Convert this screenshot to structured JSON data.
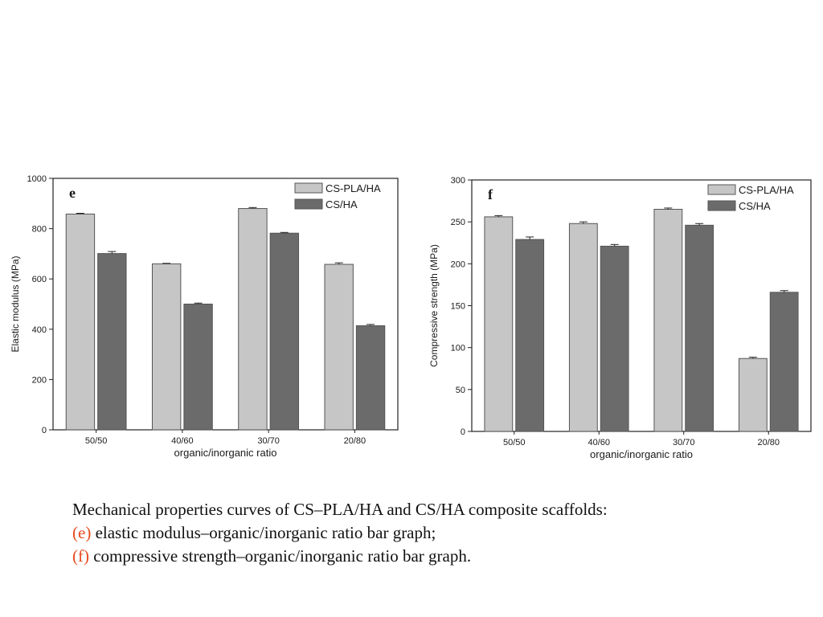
{
  "caption": {
    "line1": "Mechanical properties curves of CS–PLA/HA and CS/HA composite scaffolds:",
    "line2_tag": "(e)",
    "line2_text": " elastic modulus–organic/inorganic ratio bar graph;",
    "line3_tag": "(f)",
    "line3_text": " compressive strength–organic/inorganic ratio bar graph.",
    "tag_color": "#e8491d"
  },
  "chart_data": [
    {
      "type": "bar",
      "panel": "e",
      "categories": [
        "50/50",
        "40/60",
        "30/70",
        "20/80"
      ],
      "xlabel": "organic/inorganic ratio",
      "ylabel": "Elastic modulus (MPa)",
      "ylim": [
        0,
        1000
      ],
      "yticks": [
        0,
        200,
        400,
        600,
        800,
        1000
      ],
      "legend_position": "top-right",
      "series": [
        {
          "name": "CS-PLA/HA",
          "values": [
            858,
            660,
            880,
            658
          ],
          "errors": [
            3,
            2,
            4,
            6
          ],
          "color": "#c6c6c6"
        },
        {
          "name": "CS/HA",
          "values": [
            701,
            500,
            782,
            414
          ],
          "errors": [
            8,
            4,
            3,
            5
          ],
          "color": "#6b6b6b"
        }
      ]
    },
    {
      "type": "bar",
      "panel": "f",
      "categories": [
        "50/50",
        "40/60",
        "30/70",
        "20/80"
      ],
      "xlabel": "organic/inorganic ratio",
      "ylabel": "Compressive strength (MPa)",
      "ylim": [
        0,
        300
      ],
      "yticks": [
        0,
        50,
        100,
        150,
        200,
        250,
        300
      ],
      "legend_position": "top-right",
      "series": [
        {
          "name": "CS-PLA/HA",
          "values": [
            256,
            248,
            265,
            87
          ],
          "errors": [
            1.5,
            2,
            1.5,
            1.5
          ],
          "color": "#c6c6c6"
        },
        {
          "name": "CS/HA",
          "values": [
            229,
            221,
            246,
            166
          ],
          "errors": [
            3,
            2,
            2,
            2
          ],
          "color": "#6b6b6b"
        }
      ]
    }
  ]
}
